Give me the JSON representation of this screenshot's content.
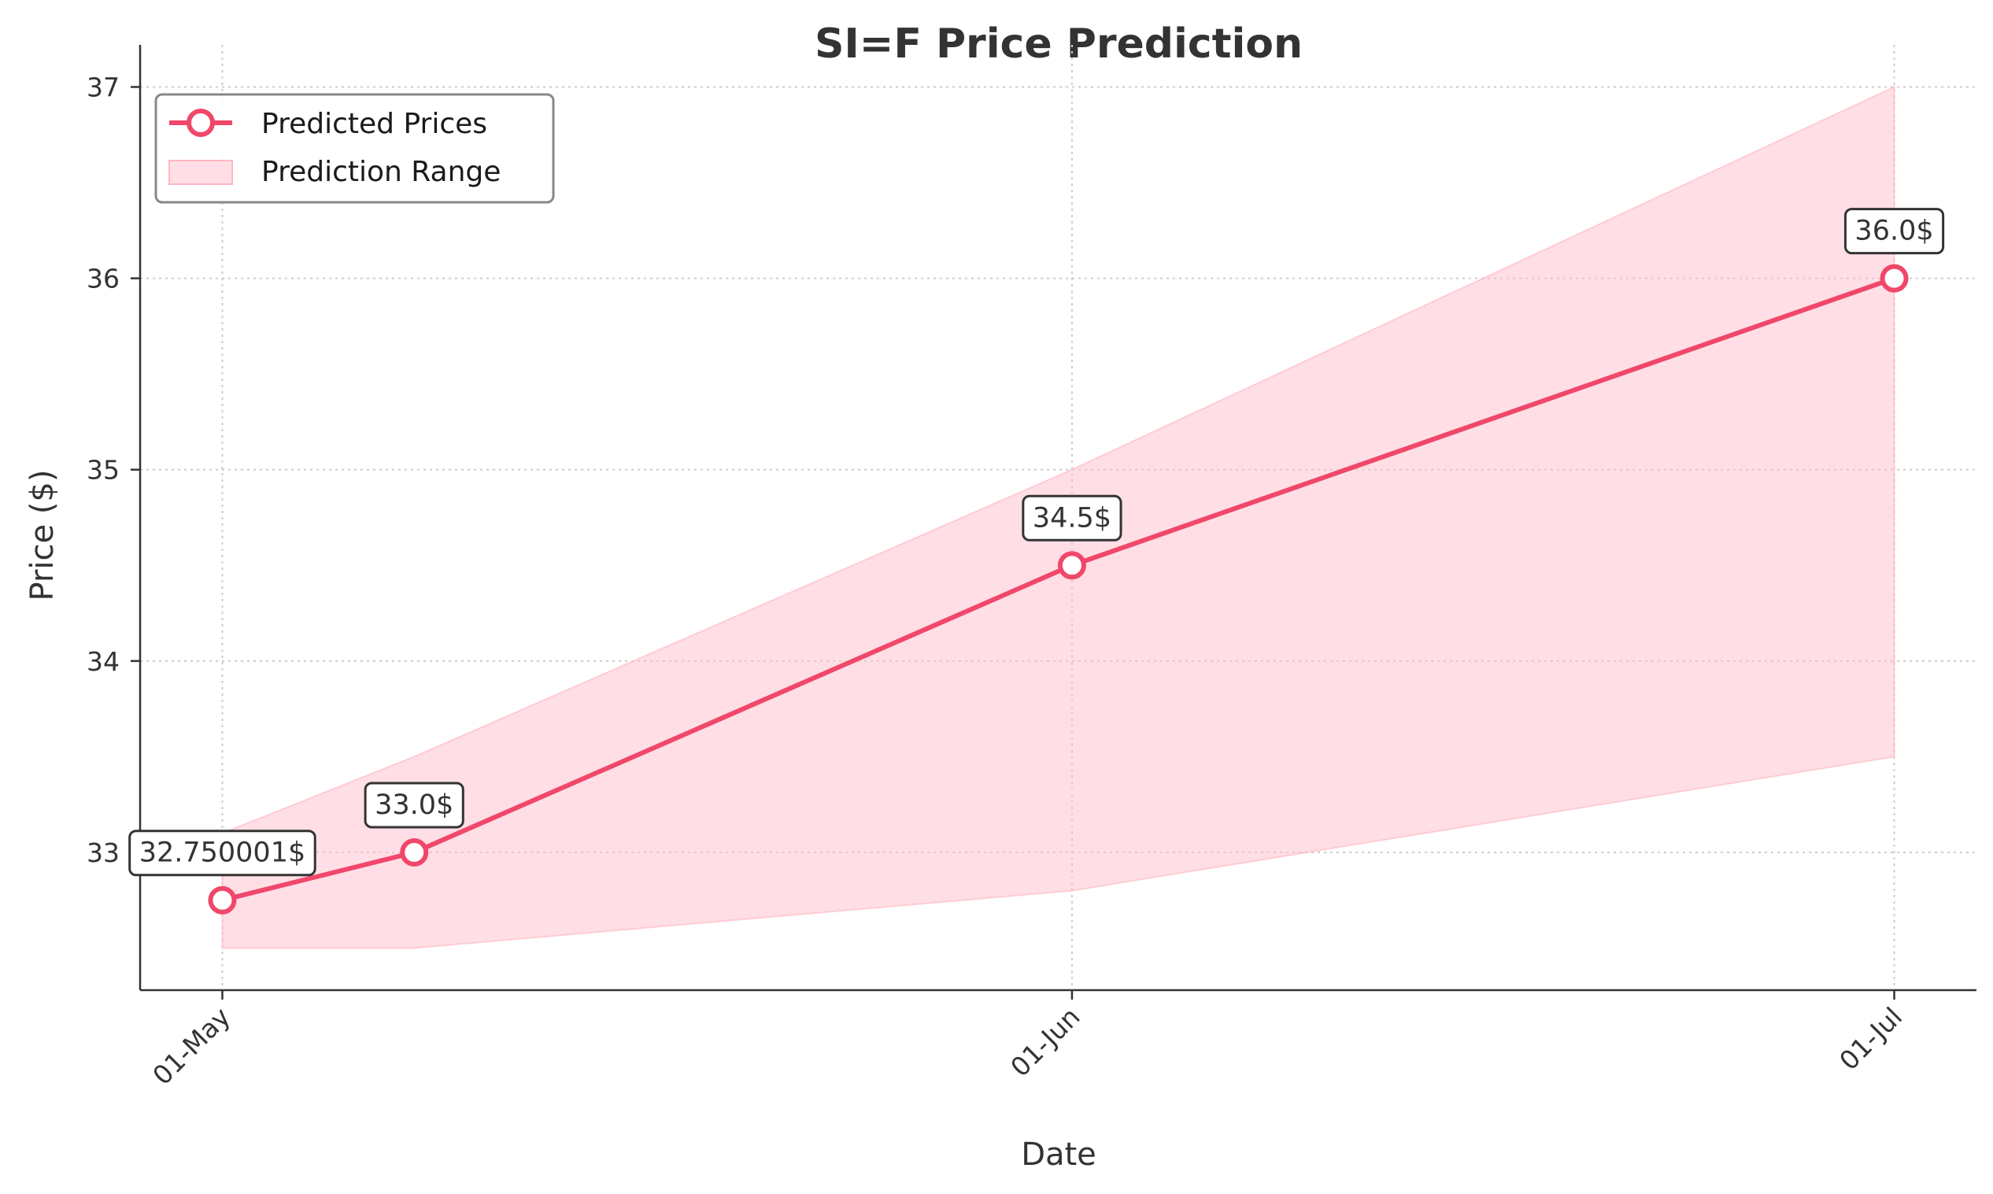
{
  "chart_data": {
    "type": "line",
    "title": "SI=F Price Prediction",
    "xlabel": "Date",
    "ylabel": "Price ($)",
    "x_ticks": [
      "01-May",
      "01-Jun",
      "01-Jul"
    ],
    "y_ticks": [
      "33",
      "34",
      "35",
      "36",
      "37"
    ],
    "x": [
      "2025-05-01",
      "2025-05-08",
      "2025-06-01",
      "2025-07-01"
    ],
    "series": [
      {
        "name": "Predicted Prices",
        "values": [
          32.750001,
          33.0,
          34.5,
          36.0
        ],
        "labels": [
          "32.750001$",
          "33.0$",
          "34.5$",
          "36.0$"
        ],
        "color": "#f0476a"
      }
    ],
    "range": {
      "name": "Prediction Range",
      "lower": [
        32.5,
        32.5,
        32.8,
        33.5
      ],
      "upper": [
        33.1,
        33.5,
        35.0,
        37.0
      ],
      "color": "#ffc0cb"
    },
    "xlim": [
      "2025-04-28",
      "2025-07-04"
    ],
    "ylim": [
      32.28,
      37.22
    ],
    "grid": true,
    "legend_position": "top-left"
  }
}
